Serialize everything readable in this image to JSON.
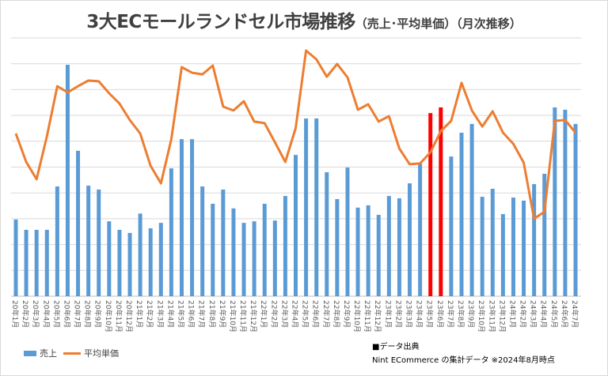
{
  "chart_data": {
    "type": "bar+line",
    "title": "3大ECモールランドセル市場推移",
    "subtitle": "（売上･平均単価）（月次推移）",
    "categories": [
      "20年1月",
      "20年2月",
      "20年3月",
      "20年4月",
      "20年5月",
      "20年6月",
      "20年7月",
      "20年8月",
      "20年9月",
      "20年10月",
      "20年11月",
      "20年12月",
      "21年1月",
      "21年2月",
      "21年3月",
      "21年4月",
      "21年5月",
      "21年6月",
      "21年7月",
      "21年8月",
      "21年9月",
      "21年10月",
      "21年11月",
      "21年12月",
      "22年1月",
      "22年2月",
      "22年3月",
      "22年4月",
      "22年5月",
      "22年6月",
      "22年7月",
      "22年8月",
      "22年9月",
      "22年10月",
      "22年11月",
      "22年12月",
      "23年1月",
      "23年2月",
      "23年3月",
      "23年4月",
      "23年5月",
      "23年6月",
      "23年7月",
      "23年8月",
      "23年9月",
      "23年10月",
      "23年11月",
      "23年12月",
      "24年1月",
      "24年2月",
      "24年3月",
      "24年4月",
      "24年5月",
      "24年6月",
      "24年7月"
    ],
    "ylim": [
      0,
      10
    ],
    "y_axis_labels_shown": false,
    "grid": true,
    "legend_placement": "bottom-left",
    "series": [
      {
        "name": "売上",
        "type": "bar",
        "color": "#5b9bd5",
        "highlight_color": "#ff0000",
        "highlight_categories": [
          "23年5月",
          "23年6月"
        ],
        "values": [
          2.97,
          2.57,
          2.57,
          2.57,
          4.25,
          8.96,
          5.63,
          4.28,
          4.13,
          2.9,
          2.57,
          2.45,
          3.2,
          2.63,
          2.84,
          4.95,
          6.08,
          6.08,
          4.25,
          3.58,
          4.13,
          3.4,
          2.84,
          2.9,
          3.58,
          2.93,
          3.88,
          5.47,
          6.88,
          6.88,
          4.8,
          3.76,
          4.98,
          3.43,
          3.52,
          3.15,
          3.88,
          3.79,
          4.37,
          5.14,
          7.09,
          7.31,
          5.41,
          6.33,
          6.67,
          3.85,
          4.16,
          3.18,
          3.82,
          3.7,
          4.34,
          4.74,
          7.31,
          7.22,
          6.67
        ]
      },
      {
        "name": "平均単価",
        "type": "line",
        "color": "#ed7d31",
        "values": [
          6.3,
          5.2,
          4.53,
          6.2,
          8.13,
          7.89,
          8.13,
          8.35,
          8.32,
          7.86,
          7.46,
          6.82,
          6.3,
          5.05,
          4.37,
          6.08,
          8.87,
          8.65,
          8.59,
          8.93,
          7.34,
          7.19,
          7.55,
          6.76,
          6.7,
          5.96,
          5.2,
          6.51,
          9.51,
          9.17,
          8.5,
          8.99,
          8.47,
          7.22,
          7.43,
          6.76,
          6.97,
          5.72,
          5.11,
          5.14,
          5.57,
          6.39,
          6.79,
          8.26,
          7.19,
          6.57,
          7.16,
          6.33,
          5.9,
          5.17,
          3.0,
          3.27,
          6.79,
          6.82,
          6.33
        ]
      }
    ]
  },
  "legend": {
    "bar_label": "売上",
    "line_label": "平均単価"
  },
  "source": {
    "heading": "■データ出典",
    "text": "Nint ECommerce の集計データ ※2024年8月時点"
  }
}
